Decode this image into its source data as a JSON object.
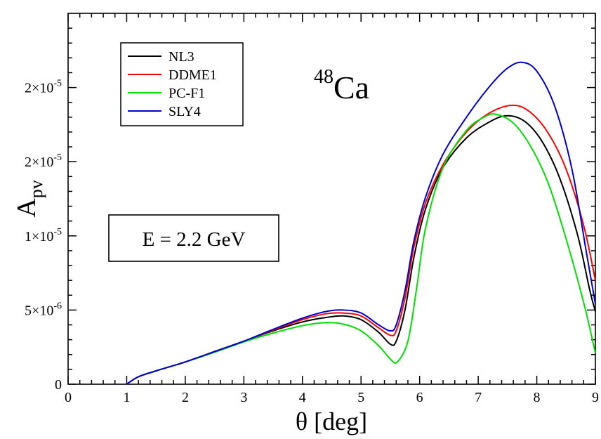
{
  "chart_data": {
    "type": "line",
    "xlabel": "θ [deg]",
    "ylabel": {
      "main": "A",
      "sub": "pv"
    },
    "xlim": [
      0,
      9
    ],
    "ylim": [
      0,
      2.5e-05
    ],
    "x_ticks": [
      0,
      1,
      2,
      3,
      4,
      5,
      6,
      7,
      8,
      9
    ],
    "x_tick_labels": [
      "0",
      "1",
      "2",
      "3",
      "4",
      "5",
      "6",
      "7",
      "8",
      "9"
    ],
    "y_ticks": [
      0,
      5e-06,
      1e-05,
      1.5e-05,
      2e-05
    ],
    "y_tick_labels": [
      {
        "mantissa": "0",
        "exponent": ""
      },
      {
        "mantissa": "5×10",
        "exponent": "-6"
      },
      {
        "mantissa": "1×10",
        "exponent": "-5"
      },
      {
        "mantissa": "2×10",
        "exponent": "-5"
      },
      {
        "mantissa": "2×10",
        "exponent": "-5"
      }
    ],
    "grid": false,
    "legend_position": "top-left",
    "annotations": {
      "nucleus_mass": "48",
      "nucleus_symbol": "Ca",
      "energy": "E = 2.2 GeV"
    },
    "series": [
      {
        "name": "NL3",
        "color": "#000000",
        "points": [
          [
            1.0,
            0.0
          ],
          [
            1.2,
            5e-07
          ],
          [
            1.5,
            9e-07
          ],
          [
            2.0,
            1.5e-06
          ],
          [
            2.5,
            2.2e-06
          ],
          [
            3.0,
            2.9e-06
          ],
          [
            3.5,
            3.6e-06
          ],
          [
            4.0,
            4.2e-06
          ],
          [
            4.4,
            4.5e-06
          ],
          [
            4.7,
            4.6e-06
          ],
          [
            5.0,
            4.35e-06
          ],
          [
            5.3,
            3.5e-06
          ],
          [
            5.5,
            2.7e-06
          ],
          [
            5.6,
            2.9e-06
          ],
          [
            5.75,
            5e-06
          ],
          [
            5.9,
            8.5e-06
          ],
          [
            6.1,
            1.18e-05
          ],
          [
            6.4,
            1.46e-05
          ],
          [
            6.8,
            1.66e-05
          ],
          [
            7.2,
            1.77e-05
          ],
          [
            7.5,
            1.81e-05
          ],
          [
            7.8,
            1.77e-05
          ],
          [
            8.1,
            1.63e-05
          ],
          [
            8.4,
            1.38e-05
          ],
          [
            8.7,
            1e-05
          ],
          [
            8.9,
            6.4e-06
          ],
          [
            9.0,
            4.9e-06
          ]
        ]
      },
      {
        "name": "DDME1",
        "color": "#ff0000",
        "points": [
          [
            1.0,
            0.0
          ],
          [
            1.2,
            5e-07
          ],
          [
            1.5,
            9e-07
          ],
          [
            2.0,
            1.5e-06
          ],
          [
            2.5,
            2.2e-06
          ],
          [
            3.0,
            2.9e-06
          ],
          [
            3.5,
            3.65e-06
          ],
          [
            4.0,
            4.35e-06
          ],
          [
            4.4,
            4.75e-06
          ],
          [
            4.7,
            4.8e-06
          ],
          [
            5.0,
            4.6e-06
          ],
          [
            5.3,
            3.8e-06
          ],
          [
            5.5,
            3.3e-06
          ],
          [
            5.6,
            3.6e-06
          ],
          [
            5.75,
            5.8e-06
          ],
          [
            5.9,
            9.2e-06
          ],
          [
            6.1,
            1.22e-05
          ],
          [
            6.4,
            1.48e-05
          ],
          [
            6.8,
            1.7e-05
          ],
          [
            7.2,
            1.83e-05
          ],
          [
            7.6,
            1.88e-05
          ],
          [
            7.9,
            1.83e-05
          ],
          [
            8.2,
            1.69e-05
          ],
          [
            8.5,
            1.45e-05
          ],
          [
            8.8,
            1.07e-05
          ],
          [
            9.0,
            7e-06
          ]
        ]
      },
      {
        "name": "PC-F1",
        "color": "#00e000",
        "points": [
          [
            1.0,
            0.0
          ],
          [
            1.2,
            5e-07
          ],
          [
            1.5,
            9e-07
          ],
          [
            2.0,
            1.5e-06
          ],
          [
            2.5,
            2.15e-06
          ],
          [
            3.0,
            2.85e-06
          ],
          [
            3.5,
            3.45e-06
          ],
          [
            4.0,
            3.95e-06
          ],
          [
            4.4,
            4.15e-06
          ],
          [
            4.7,
            4.05e-06
          ],
          [
            5.0,
            3.6e-06
          ],
          [
            5.3,
            2.6e-06
          ],
          [
            5.5,
            1.7e-06
          ],
          [
            5.62,
            1.5e-06
          ],
          [
            5.8,
            2.9e-06
          ],
          [
            5.95,
            6.5e-06
          ],
          [
            6.1,
            1.05e-05
          ],
          [
            6.4,
            1.46e-05
          ],
          [
            6.8,
            1.71e-05
          ],
          [
            7.1,
            1.8e-05
          ],
          [
            7.3,
            1.82e-05
          ],
          [
            7.6,
            1.76e-05
          ],
          [
            7.9,
            1.6e-05
          ],
          [
            8.2,
            1.35e-05
          ],
          [
            8.5,
            9.8e-06
          ],
          [
            8.8,
            5.5e-06
          ],
          [
            9.0,
            2.1e-06
          ]
        ]
      },
      {
        "name": "SLY4",
        "color": "#0000cc",
        "points": [
          [
            1.0,
            0.0
          ],
          [
            1.2,
            5e-07
          ],
          [
            1.5,
            9e-07
          ],
          [
            2.0,
            1.5e-06
          ],
          [
            2.5,
            2.2e-06
          ],
          [
            3.0,
            2.9e-06
          ],
          [
            3.5,
            3.7e-06
          ],
          [
            4.0,
            4.45e-06
          ],
          [
            4.4,
            4.9e-06
          ],
          [
            4.7,
            5e-06
          ],
          [
            5.0,
            4.8e-06
          ],
          [
            5.3,
            4e-06
          ],
          [
            5.5,
            3.6e-06
          ],
          [
            5.6,
            4e-06
          ],
          [
            5.75,
            6.3e-06
          ],
          [
            5.9,
            9.6e-06
          ],
          [
            6.1,
            1.26e-05
          ],
          [
            6.4,
            1.55e-05
          ],
          [
            6.8,
            1.8e-05
          ],
          [
            7.2,
            2.01e-05
          ],
          [
            7.5,
            2.13e-05
          ],
          [
            7.75,
            2.17e-05
          ],
          [
            8.0,
            2.11e-05
          ],
          [
            8.3,
            1.88e-05
          ],
          [
            8.6,
            1.45e-05
          ],
          [
            8.85,
            8.8e-06
          ],
          [
            9.0,
            5.4e-06
          ]
        ]
      }
    ]
  }
}
